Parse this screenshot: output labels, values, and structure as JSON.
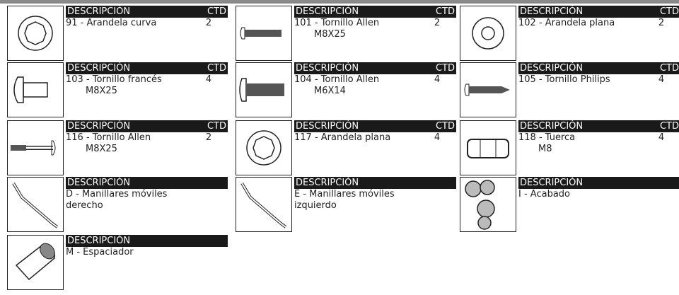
{
  "labels": {
    "description": "DESCRIPCIÓN",
    "qty": "CTD"
  },
  "items": [
    {
      "lines": [
        "91 - Arandela curva"
      ],
      "qty": 2
    },
    {
      "lines": [
        "101 - Tornillo Allen",
        "M8X25"
      ],
      "qty": 2
    },
    {
      "lines": [
        "102 - Arandela plana"
      ],
      "qty": 2
    },
    {
      "lines": [
        "103 - Tornillo francés",
        "M8X25"
      ],
      "qty": 4
    },
    {
      "lines": [
        "104 - Tornillo Allen",
        "M6X14"
      ],
      "qty": 4
    },
    {
      "lines": [
        "105 - Tornillo Philips"
      ],
      "qty": 4
    },
    {
      "lines": [
        "116 - Tornillo Allen",
        "M8X25"
      ],
      "qty": 2
    },
    {
      "lines": [
        "117 - Arandela plana"
      ],
      "qty": 4
    },
    {
      "lines": [
        "118 - Tuerca",
        "M8"
      ],
      "qty": 4
    },
    {
      "lines": [
        "D - Manillares móviles",
        "derecho"
      ]
    },
    {
      "lines": [
        "E - Manillares móviles",
        "izquierdo"
      ]
    },
    {
      "lines": [
        "I - Acabado"
      ]
    },
    {
      "lines": [
        "M - Espaciador"
      ]
    }
  ]
}
